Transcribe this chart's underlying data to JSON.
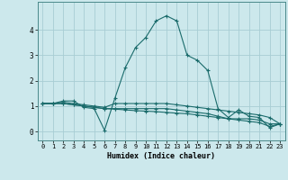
{
  "xlabel": "Humidex (Indice chaleur)",
  "background_color": "#cce8ec",
  "line_color": "#1a6b6b",
  "grid_color": "#a8cdd4",
  "x_hours": [
    0,
    1,
    2,
    3,
    4,
    5,
    6,
    7,
    8,
    9,
    10,
    11,
    12,
    13,
    14,
    15,
    16,
    17,
    18,
    19,
    20,
    21,
    22,
    23
  ],
  "series": {
    "line1": [
      1.1,
      1.1,
      1.2,
      1.2,
      0.95,
      0.9,
      0.05,
      1.3,
      2.5,
      3.3,
      3.7,
      4.35,
      4.55,
      4.35,
      3.0,
      2.8,
      2.4,
      0.9,
      0.55,
      0.85,
      0.6,
      0.55,
      0.15,
      0.3
    ],
    "line2": [
      1.1,
      1.1,
      1.15,
      1.1,
      1.05,
      1.0,
      0.95,
      1.1,
      1.1,
      1.1,
      1.1,
      1.1,
      1.1,
      1.05,
      1.0,
      0.95,
      0.9,
      0.85,
      0.8,
      0.75,
      0.7,
      0.65,
      0.55,
      0.3
    ],
    "line3": [
      1.1,
      1.1,
      1.1,
      1.05,
      1.0,
      0.95,
      0.9,
      0.9,
      0.9,
      0.9,
      0.9,
      0.9,
      0.9,
      0.85,
      0.8,
      0.75,
      0.7,
      0.6,
      0.5,
      0.5,
      0.5,
      0.45,
      0.3,
      0.3
    ],
    "line4": [
      1.1,
      1.1,
      1.1,
      1.05,
      1.0,
      0.95,
      0.9,
      0.88,
      0.85,
      0.82,
      0.8,
      0.78,
      0.75,
      0.72,
      0.7,
      0.65,
      0.6,
      0.55,
      0.5,
      0.45,
      0.4,
      0.35,
      0.2,
      0.3
    ]
  },
  "ylim": [
    -0.35,
    5.1
  ],
  "xlim": [
    -0.5,
    23.5
  ],
  "yticks": [
    0,
    1,
    2,
    3,
    4
  ],
  "xticks": [
    0,
    1,
    2,
    3,
    4,
    5,
    6,
    7,
    8,
    9,
    10,
    11,
    12,
    13,
    14,
    15,
    16,
    17,
    18,
    19,
    20,
    21,
    22,
    23
  ]
}
